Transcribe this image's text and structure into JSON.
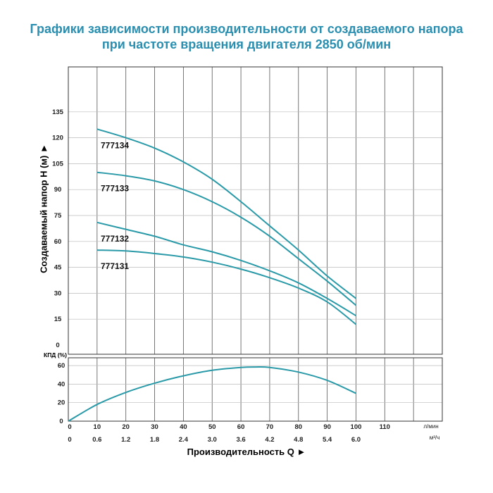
{
  "title": {
    "line1": "Графики зависимости производительности от создаваемого напора",
    "line2": "при частоте вращения двигателя 2850 об/мин"
  },
  "colors": {
    "curve": "#2a9aa8",
    "grid": "#555555",
    "title": "#2a8fb0",
    "frame": "#333333"
  },
  "chart_data": [
    {
      "type": "line",
      "ylabel": "Создаваемый напор H (м) ►",
      "xlabel": "Производительность Q ►",
      "x_unit_primary": "л/мин",
      "x_unit_secondary": "м³/ч",
      "x_ticks_primary": [
        "0",
        "10",
        "20",
        "30",
        "40",
        "50",
        "60",
        "70",
        "80",
        "90",
        "100",
        "110"
      ],
      "x_ticks_secondary": [
        "0",
        "0.6",
        "1.2",
        "1.8",
        "2.4",
        "3.0",
        "3.6",
        "4.2",
        "4.8",
        "5.4",
        "6.0"
      ],
      "y_ticks": [
        "0",
        "15",
        "30",
        "45",
        "60",
        "75",
        "90",
        "105",
        "120",
        "135"
      ],
      "xlim": [
        0,
        130
      ],
      "ylim": [
        0,
        150
      ],
      "grid": true,
      "series": [
        {
          "name": "777134",
          "x": [
            10,
            20,
            30,
            40,
            50,
            60,
            70,
            80,
            90,
            100
          ],
          "y": [
            125,
            120,
            114,
            106,
            96,
            83,
            69,
            55,
            40,
            27
          ]
        },
        {
          "name": "777133",
          "x": [
            10,
            20,
            30,
            40,
            50,
            60,
            70,
            80,
            90,
            100
          ],
          "y": [
            100,
            98,
            95,
            90,
            83,
            74,
            63,
            50,
            37,
            23
          ]
        },
        {
          "name": "777132",
          "x": [
            10,
            20,
            30,
            40,
            50,
            60,
            70,
            80,
            90,
            100
          ],
          "y": [
            71,
            67,
            63,
            58,
            54,
            49,
            43,
            36,
            27,
            17
          ]
        },
        {
          "name": "777131",
          "x": [
            10,
            20,
            30,
            40,
            50,
            60,
            70,
            80,
            90,
            100
          ],
          "y": [
            55,
            54.5,
            53,
            51,
            48,
            44,
            39,
            33,
            25,
            12
          ]
        }
      ]
    },
    {
      "type": "line",
      "ylabel": "КПД (%)",
      "y_ticks": [
        "0",
        "20",
        "40",
        "60"
      ],
      "ylim": [
        0,
        70
      ],
      "xlim": [
        0,
        130
      ],
      "grid": true,
      "series": [
        {
          "name": "",
          "x": [
            0,
            10,
            20,
            30,
            40,
            50,
            60,
            65,
            70,
            80,
            90,
            100
          ],
          "y": [
            0,
            18,
            31,
            41,
            49,
            55,
            58,
            58.5,
            58,
            53,
            44,
            30
          ]
        }
      ]
    }
  ]
}
